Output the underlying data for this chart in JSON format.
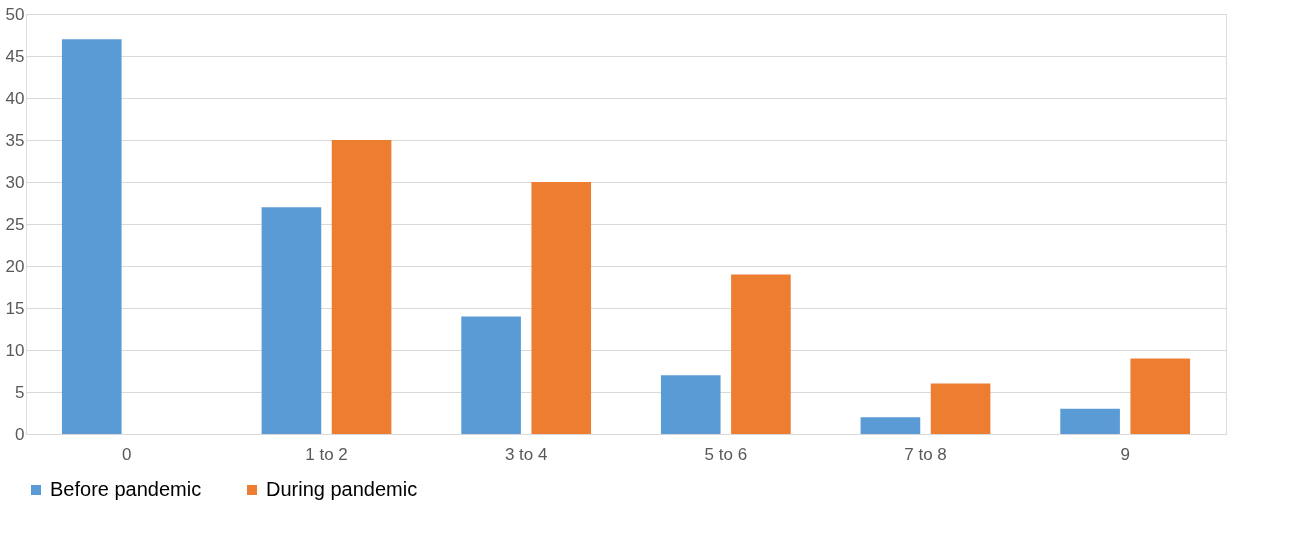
{
  "chart_data": {
    "type": "bar",
    "categories": [
      "0",
      "1 to 2",
      "3 to 4",
      "5 to 6",
      "7 to 8",
      "9"
    ],
    "series": [
      {
        "name": "Before pandemic",
        "color": "#5b9bd5",
        "values": [
          47,
          27,
          14,
          7,
          2,
          3
        ]
      },
      {
        "name": "During pandemic",
        "color": "#ed7d31",
        "values": [
          null,
          35,
          30,
          19,
          6,
          9
        ]
      }
    ],
    "ylim": [
      0,
      50
    ],
    "yticks": [
      0,
      5,
      10,
      15,
      20,
      25,
      30,
      35,
      40,
      45,
      50
    ],
    "grid": "y",
    "legend": "bottom"
  }
}
